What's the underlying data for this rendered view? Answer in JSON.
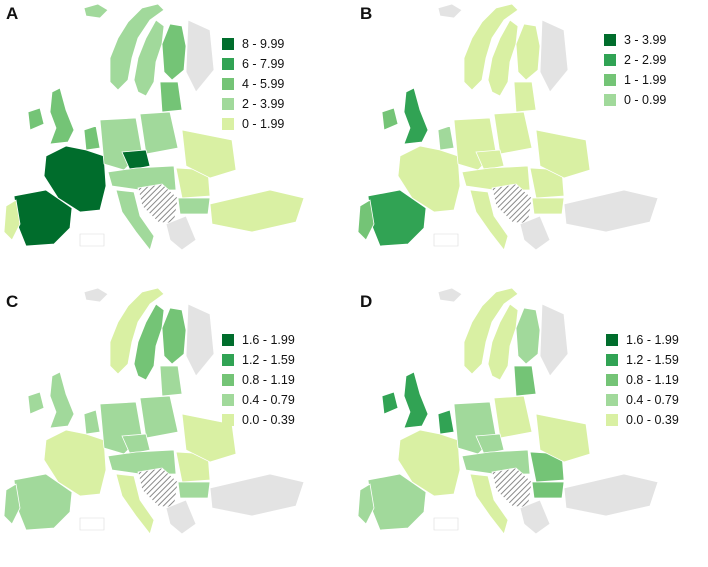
{
  "colors": {
    "c5": "#006d2c",
    "c4": "#31a354",
    "c3": "#74c476",
    "c2": "#a1d99b",
    "c1": "#d9f0a3",
    "nodata": "#e3e3e3",
    "hatch": "#8a8a8a",
    "border": "#ffffff"
  },
  "panels": [
    {
      "letter": "A",
      "legend": [
        {
          "label": "8 - 9.99",
          "color": "#006d2c"
        },
        {
          "label": "6 - 7.99",
          "color": "#31a354"
        },
        {
          "label": "4 - 5.99",
          "color": "#74c476"
        },
        {
          "label": "2 - 3.99",
          "color": "#a1d99b"
        },
        {
          "label": "0 - 1.99",
          "color": "#d9f0a3"
        }
      ],
      "regions": {
        "iceland": "c2",
        "norway": "c2",
        "sweden": "c2",
        "finland": "c3",
        "baltics": "c3",
        "russia_ne": "nodata",
        "ireland": "c3",
        "uk": "c3",
        "france": "c5",
        "iberia": "c5",
        "portugal": "c1",
        "benelux": "c3",
        "germany": "c2",
        "poland": "c2",
        "czech": "c5",
        "austria_hu": "c2",
        "italy": "c2",
        "balkans": "hatch",
        "romania": "c1",
        "bulgaria": "c2",
        "greece": "nodata",
        "ukraine": "c1",
        "turkey": "c1"
      }
    },
    {
      "letter": "B",
      "legend": [
        {
          "label": "3 - 3.99",
          "color": "#006d2c"
        },
        {
          "label": "2 - 2.99",
          "color": "#31a354"
        },
        {
          "label": "1 - 1.99",
          "color": "#74c476"
        },
        {
          "label": "0 - 0.99",
          "color": "#a1d99b"
        }
      ],
      "regions": {
        "iceland": "nodata",
        "norway": "c1",
        "sweden": "c1",
        "finland": "c1",
        "baltics": "c1",
        "russia_ne": "nodata",
        "ireland": "c3",
        "uk": "c4",
        "france": "c1",
        "iberia": "c4",
        "portugal": "c3",
        "benelux": "c2",
        "germany": "c1",
        "poland": "c1",
        "czech": "c1",
        "austria_hu": "c1",
        "italy": "c1",
        "balkans": "hatch",
        "romania": "c1",
        "bulgaria": "c1",
        "greece": "nodata",
        "ukraine": "c1",
        "turkey": "nodata"
      }
    },
    {
      "letter": "C",
      "legend": [
        {
          "label": "1.6 - 1.99",
          "color": "#006d2c"
        },
        {
          "label": "1.2 - 1.59",
          "color": "#31a354"
        },
        {
          "label": "0.8 - 1.19",
          "color": "#74c476"
        },
        {
          "label": "0.4 - 0.79",
          "color": "#a1d99b"
        },
        {
          "label": "0.0 - 0.39",
          "color": "#d9f0a3"
        }
      ],
      "regions": {
        "iceland": "nodata",
        "norway": "c1",
        "sweden": "c3",
        "finland": "c3",
        "baltics": "c2",
        "russia_ne": "nodata",
        "ireland": "c2",
        "uk": "c2",
        "france": "c1",
        "iberia": "c2",
        "portugal": "c2",
        "benelux": "c2",
        "germany": "c2",
        "poland": "c2",
        "czech": "c2",
        "austria_hu": "c2",
        "italy": "c1",
        "balkans": "hatch",
        "romania": "c1",
        "bulgaria": "c2",
        "greece": "nodata",
        "ukraine": "c1",
        "turkey": "nodata"
      }
    },
    {
      "letter": "D",
      "legend": [
        {
          "label": "1.6 - 1.99",
          "color": "#006d2c"
        },
        {
          "label": "1.2 - 1.59",
          "color": "#31a354"
        },
        {
          "label": "0.8 - 1.19",
          "color": "#74c476"
        },
        {
          "label": "0.4 - 0.79",
          "color": "#a1d99b"
        },
        {
          "label": "0.0 - 0.39",
          "color": "#d9f0a3"
        }
      ],
      "regions": {
        "iceland": "nodata",
        "norway": "c1",
        "sweden": "c1",
        "finland": "c2",
        "baltics": "c3",
        "russia_ne": "nodata",
        "ireland": "c4",
        "uk": "c4",
        "france": "c1",
        "iberia": "c2",
        "portugal": "c2",
        "benelux": "c4",
        "germany": "c2",
        "poland": "c1",
        "czech": "c2",
        "austria_hu": "c2",
        "italy": "c1",
        "balkans": "hatch",
        "romania": "c3",
        "bulgaria": "c3",
        "greece": "nodata",
        "ukraine": "c1",
        "turkey": "nodata"
      }
    }
  ]
}
